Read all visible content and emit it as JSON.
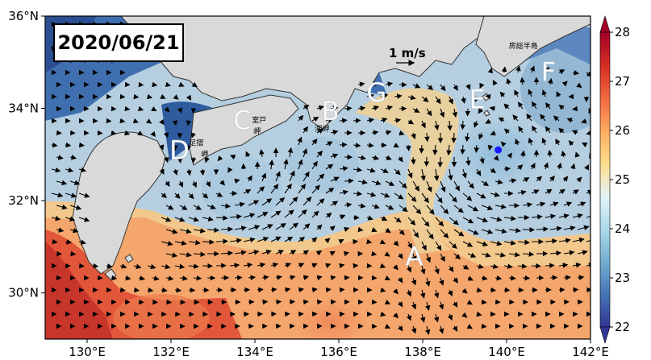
{
  "date_label": "2020/06/21",
  "scale_label": "1 m/s",
  "map": {
    "lon_range": [
      129,
      142
    ],
    "lat_range": [
      29,
      36
    ],
    "lon_ticks": [
      "130°E",
      "132°E",
      "134°E",
      "136°E",
      "138°E",
      "140°E",
      "142°E"
    ],
    "lat_ticks": [
      "30°N",
      "32°N",
      "34°N",
      "36°N"
    ],
    "point_labels": [
      {
        "text": "A",
        "lon": 137.8,
        "lat": 30.6
      },
      {
        "text": "B",
        "lon": 135.8,
        "lat": 33.75
      },
      {
        "text": "C",
        "lon": 133.7,
        "lat": 33.55
      },
      {
        "text": "D",
        "lon": 132.2,
        "lat": 32.9
      },
      {
        "text": "E",
        "lon": 139.3,
        "lat": 34.0
      },
      {
        "text": "F",
        "lon": 141.0,
        "lat": 34.6
      },
      {
        "text": "G",
        "lon": 136.9,
        "lat": 34.15
      }
    ],
    "place_names": [
      {
        "text": "室戸",
        "lon": 134.1,
        "lat": 33.7
      },
      {
        "text": "岬",
        "lon": 134.05,
        "lat": 33.45
      },
      {
        "text": "潮岬",
        "lon": 135.6,
        "lat": 33.5
      },
      {
        "text": "足摺",
        "lon": 132.6,
        "lat": 33.2
      },
      {
        "text": "岬",
        "lon": 132.8,
        "lat": 32.95
      },
      {
        "text": "房総半島",
        "lon": 140.4,
        "lat": 35.3
      }
    ],
    "marker": {
      "lon": 139.8,
      "lat": 33.1,
      "color": "#1a1aff"
    },
    "land_color": "#d9d9d9"
  },
  "colorbar": {
    "min": 22,
    "max": 28,
    "ticks": [
      "22",
      "23",
      "24",
      "25",
      "26",
      "27",
      "28"
    ],
    "colors": [
      "#313695",
      "#4575b4",
      "#74add1",
      "#abd9e9",
      "#e0f3f8",
      "#fee090",
      "#fdae61",
      "#f46d43",
      "#d73027",
      "#a50026"
    ]
  }
}
